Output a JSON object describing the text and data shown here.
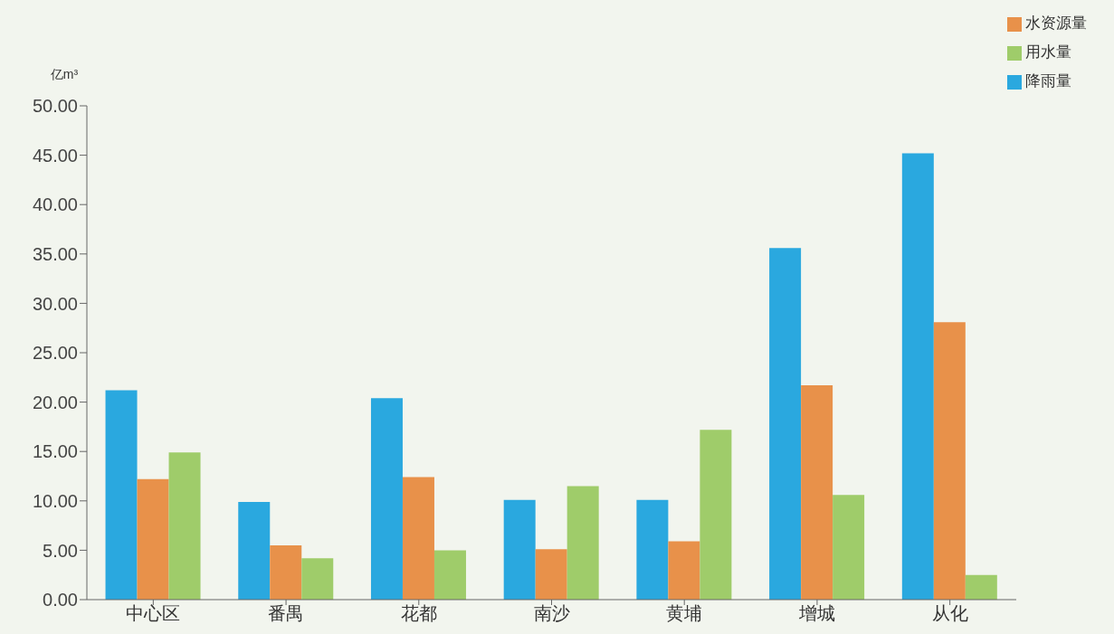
{
  "chart_data": {
    "type": "bar",
    "ylabel": "亿m³",
    "categories": [
      "中心区",
      "番禺",
      "花都",
      "南沙",
      "黄埔",
      "增城",
      "从化"
    ],
    "series": [
      {
        "name": "降雨量",
        "color": "#2aa8df",
        "values": [
          21.2,
          9.9,
          20.4,
          10.1,
          10.1,
          35.6,
          45.2
        ]
      },
      {
        "name": "水资源量",
        "color": "#e8914a",
        "values": [
          12.2,
          5.5,
          12.4,
          5.1,
          5.9,
          21.7,
          28.1
        ]
      },
      {
        "name": "用水量",
        "color": "#9fcc6a",
        "values": [
          14.9,
          4.2,
          5.0,
          11.5,
          17.2,
          10.6,
          2.5
        ]
      }
    ],
    "ylim": [
      0,
      50
    ],
    "yticks": [
      {
        "value": 0,
        "label": "0.00"
      },
      {
        "value": 5,
        "label": "5.00"
      },
      {
        "value": 10,
        "label": "10.00"
      },
      {
        "value": 15,
        "label": "15.00"
      },
      {
        "value": 20,
        "label": "20.00"
      },
      {
        "value": 25,
        "label": "25.00"
      },
      {
        "value": 30,
        "label": "30.00"
      },
      {
        "value": 35,
        "label": "35.00"
      },
      {
        "value": 40,
        "label": "40.00"
      },
      {
        "value": 45,
        "label": "45.00"
      },
      {
        "value": 50,
        "label": "50.00"
      }
    ],
    "grid": false,
    "legend": "top right"
  }
}
